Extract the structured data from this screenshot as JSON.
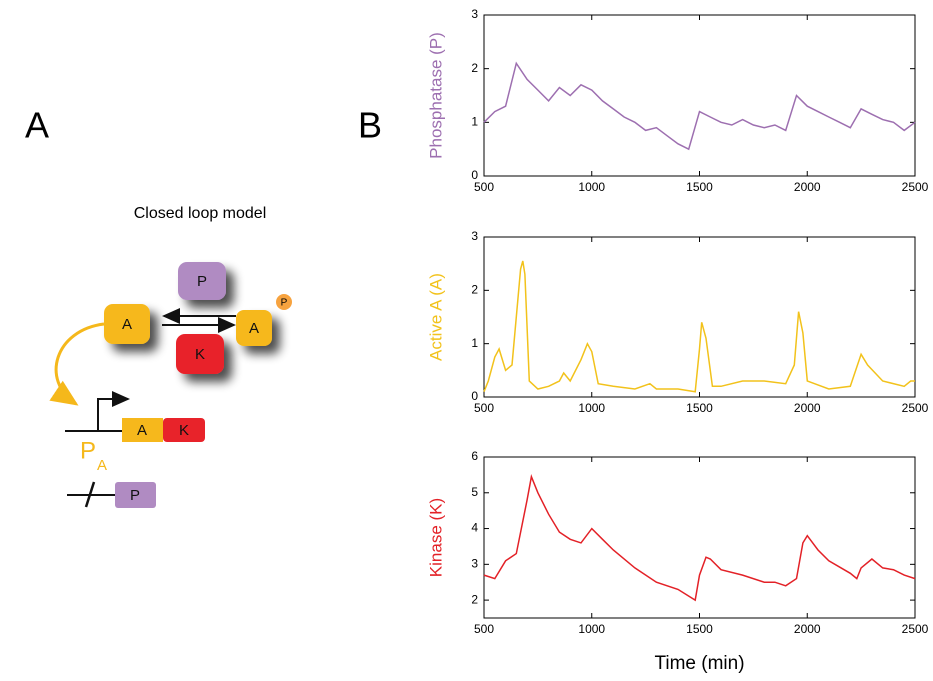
{
  "diagram": {
    "panel_labels": [
      "A",
      "B"
    ],
    "title": "Closed loop model",
    "complex": {
      "phosphatase": "P",
      "substrate": "A",
      "product": "A",
      "phospho": "P",
      "kinase": "K"
    },
    "gene": {
      "a": "A",
      "k": "K",
      "promoter": "P",
      "promoter_sub": "A"
    },
    "phosphatase_gene": "P"
  },
  "chart_data": [
    {
      "type": "line",
      "ylabel": "Phosphatase (P)",
      "x": [
        500,
        550,
        600,
        650,
        700,
        750,
        800,
        850,
        900,
        950,
        1000,
        1050,
        1100,
        1150,
        1200,
        1250,
        1300,
        1350,
        1400,
        1450,
        1500,
        1550,
        1600,
        1650,
        1700,
        1750,
        1800,
        1850,
        1900,
        1950,
        2000,
        2050,
        2100,
        2150,
        2200,
        2250,
        2300,
        2350,
        2400,
        2450,
        2500
      ],
      "series": [
        {
          "name": "Phosphatase (P)",
          "color": "#9d6fb0",
          "values": [
            1.0,
            1.2,
            1.3,
            2.1,
            1.8,
            1.6,
            1.4,
            1.65,
            1.5,
            1.7,
            1.6,
            1.4,
            1.25,
            1.1,
            1.0,
            0.85,
            0.9,
            0.75,
            0.6,
            0.5,
            1.2,
            1.1,
            1.0,
            0.95,
            1.05,
            0.95,
            0.9,
            0.95,
            0.85,
            1.5,
            1.3,
            1.2,
            1.1,
            1.0,
            0.9,
            1.25,
            1.15,
            1.05,
            1.0,
            0.85,
            1.0
          ]
        }
      ],
      "xlim": [
        500,
        2500
      ],
      "xticks": [
        500,
        1000,
        1500,
        2000,
        2500
      ],
      "ylim": [
        0,
        3
      ],
      "yticks": [
        0,
        1,
        2,
        3
      ]
    },
    {
      "type": "line",
      "ylabel": "Active A (A)",
      "x": [
        500,
        520,
        550,
        570,
        600,
        630,
        650,
        670,
        680,
        690,
        710,
        750,
        800,
        850,
        870,
        900,
        950,
        980,
        1000,
        1030,
        1100,
        1200,
        1270,
        1300,
        1400,
        1480,
        1500,
        1510,
        1530,
        1560,
        1600,
        1700,
        1800,
        1900,
        1940,
        1960,
        1980,
        2000,
        2100,
        2200,
        2250,
        2280,
        2350,
        2450,
        2480,
        2500
      ],
      "series": [
        {
          "name": "Active A (A)",
          "color": "#f2c21b",
          "values": [
            0.1,
            0.3,
            0.75,
            0.9,
            0.5,
            0.6,
            1.5,
            2.4,
            2.55,
            2.3,
            0.3,
            0.15,
            0.2,
            0.3,
            0.45,
            0.3,
            0.7,
            1.0,
            0.85,
            0.25,
            0.2,
            0.15,
            0.25,
            0.15,
            0.15,
            0.1,
            0.9,
            1.4,
            1.1,
            0.2,
            0.2,
            0.3,
            0.3,
            0.25,
            0.6,
            1.6,
            1.2,
            0.3,
            0.15,
            0.2,
            0.8,
            0.6,
            0.3,
            0.2,
            0.3,
            0.3
          ]
        }
      ],
      "xlim": [
        500,
        2500
      ],
      "xticks": [
        500,
        1000,
        1500,
        2000,
        2500
      ],
      "ylim": [
        0,
        3
      ],
      "yticks": [
        0,
        1,
        2,
        3
      ]
    },
    {
      "type": "line",
      "ylabel": "Kinase (K)",
      "xlabel": "Time (min)",
      "x": [
        500,
        550,
        600,
        650,
        700,
        720,
        750,
        800,
        850,
        900,
        950,
        1000,
        1050,
        1100,
        1200,
        1300,
        1400,
        1480,
        1500,
        1530,
        1550,
        1600,
        1700,
        1800,
        1850,
        1900,
        1950,
        1980,
        2000,
        2050,
        2100,
        2200,
        2230,
        2250,
        2300,
        2350,
        2400,
        2450,
        2500
      ],
      "series": [
        {
          "name": "Kinase (K)",
          "color": "#e32127",
          "values": [
            2.7,
            2.6,
            3.1,
            3.3,
            4.8,
            5.45,
            5.0,
            4.4,
            3.9,
            3.7,
            3.6,
            4.0,
            3.7,
            3.4,
            2.9,
            2.5,
            2.3,
            2.0,
            2.7,
            3.2,
            3.15,
            2.85,
            2.7,
            2.5,
            2.5,
            2.4,
            2.6,
            3.6,
            3.8,
            3.4,
            3.1,
            2.75,
            2.6,
            2.9,
            3.15,
            2.9,
            2.85,
            2.7,
            2.6
          ]
        }
      ],
      "xlim": [
        500,
        2500
      ],
      "xticks": [
        500,
        1000,
        1500,
        2000,
        2500
      ],
      "ylim": [
        1.5,
        6
      ],
      "yticks": [
        2,
        3,
        4,
        5,
        6
      ]
    }
  ]
}
